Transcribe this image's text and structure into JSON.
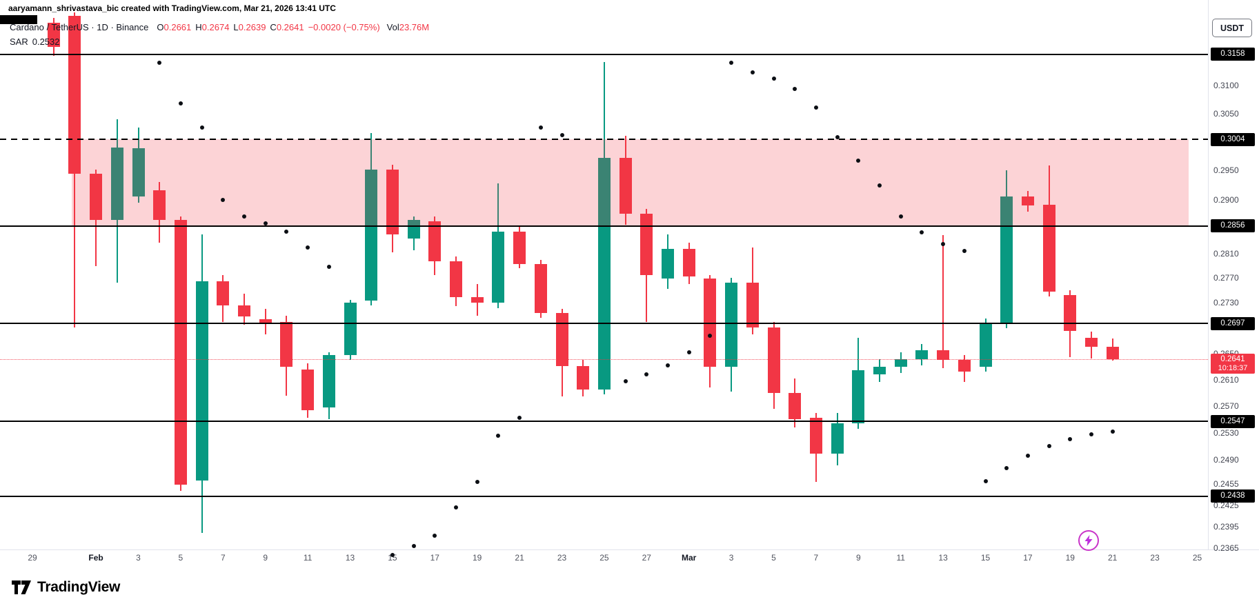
{
  "attribution": "aaryamann_shrivastava_bic created with TradingView.com, Mar 21, 2026 13:41 UTC",
  "legend": {
    "title": "Cardano / TetherUS · 1D · Binance",
    "o_label": "O",
    "o_value": "0.2661",
    "h_label": "H",
    "h_value": "0.2674",
    "l_label": "L",
    "l_value": "0.2639",
    "c_label": "C",
    "c_value": "0.2641",
    "change": "−0.0020 (−0.75%)",
    "vol_label": "Vol",
    "vol_value": "23.76M",
    "indicator_name": "SAR",
    "indicator_value": "0.2532"
  },
  "axis_right": {
    "currency_button": "USDT",
    "labels": [
      {
        "text": "0.3100",
        "price": 0.31
      },
      {
        "text": "0.3050",
        "price": 0.305
      },
      {
        "text": "0.2950",
        "price": 0.295
      },
      {
        "text": "0.2900",
        "price": 0.29
      },
      {
        "text": "0.2810",
        "price": 0.281
      },
      {
        "text": "0.2770",
        "price": 0.277
      },
      {
        "text": "0.2730",
        "price": 0.273
      },
      {
        "text": "0.2650",
        "price": 0.265
      },
      {
        "text": "0.2610",
        "price": 0.261
      },
      {
        "text": "0.2570",
        "price": 0.257
      },
      {
        "text": "0.2530",
        "price": 0.253
      },
      {
        "text": "0.2490",
        "price": 0.249
      },
      {
        "text": "0.2455",
        "price": 0.2455
      },
      {
        "text": "0.2425",
        "price": 0.2425
      },
      {
        "text": "0.2395",
        "price": 0.2395
      },
      {
        "text": "0.2365",
        "price": 0.2365
      }
    ],
    "last_price_badge": {
      "value": "0.2641",
      "countdown": "10:18:37",
      "price": 0.2641
    }
  },
  "axis_bottom": {
    "labels": [
      {
        "text": "29",
        "date": "Jan 29"
      },
      {
        "text": "Feb",
        "date": "Feb 1",
        "month": true
      },
      {
        "text": "3",
        "date": "Feb 3"
      },
      {
        "text": "5",
        "date": "Feb 5"
      },
      {
        "text": "7",
        "date": "Feb 7"
      },
      {
        "text": "9",
        "date": "Feb 9"
      },
      {
        "text": "11",
        "date": "Feb 11"
      },
      {
        "text": "13",
        "date": "Feb 13"
      },
      {
        "text": "15",
        "date": "Feb 15"
      },
      {
        "text": "17",
        "date": "Feb 17"
      },
      {
        "text": "19",
        "date": "Feb 19"
      },
      {
        "text": "21",
        "date": "Feb 21"
      },
      {
        "text": "23",
        "date": "Feb 23"
      },
      {
        "text": "25",
        "date": "Feb 25"
      },
      {
        "text": "27",
        "date": "Feb 27"
      },
      {
        "text": "Mar",
        "date": "Mar 1",
        "month": true
      },
      {
        "text": "3",
        "date": "Mar 3"
      },
      {
        "text": "5",
        "date": "Mar 5"
      },
      {
        "text": "7",
        "date": "Mar 7"
      },
      {
        "text": "9",
        "date": "Mar 9"
      },
      {
        "text": "11",
        "date": "Mar 11"
      },
      {
        "text": "13",
        "date": "Mar 13"
      },
      {
        "text": "15",
        "date": "Mar 15"
      },
      {
        "text": "17",
        "date": "Mar 17"
      },
      {
        "text": "19",
        "date": "Mar 19"
      },
      {
        "text": "21",
        "date": "Mar 21"
      },
      {
        "text": "23",
        "date": "Mar 23"
      },
      {
        "text": "25",
        "date": "Mar 25"
      }
    ]
  },
  "logo": {
    "text": "TradingView"
  },
  "colors": {
    "up": "#089981",
    "down": "#F23645",
    "zone_fill": "rgba(242,54,69,0.22)",
    "level_line": "#000000",
    "sar_dot": "#0C0F14",
    "last_price": "#F23645",
    "badge_bg": "#000000",
    "badge_text": "#FFFFFF",
    "last_badge_bg": "#F23645"
  },
  "chart_data": {
    "type": "candlestick",
    "symbol": "Cardano / TetherUS",
    "exchange": "Binance",
    "timeframe": "1D",
    "scale": "log",
    "last_price": 0.2641,
    "price_range": [
      0.2365,
      0.3236
    ],
    "overlay_indicator": "Parabolic SAR",
    "zone": {
      "top": 0.3004,
      "bottom": 0.2856,
      "from_date": "Jan 31"
    },
    "levels": [
      {
        "price": 0.3158,
        "label": "0.3158",
        "style": "solid"
      },
      {
        "price": 0.3004,
        "label": "0.3004",
        "style": "dashed"
      },
      {
        "price": 0.2856,
        "label": "0.2856",
        "style": "solid"
      },
      {
        "price": 0.2697,
        "label": "0.2697",
        "style": "solid"
      },
      {
        "price": 0.2547,
        "label": "0.2547",
        "style": "solid"
      },
      {
        "price": 0.2438,
        "label": "0.2438",
        "style": "solid"
      }
    ],
    "candles": [
      {
        "date": "Jan 30",
        "o": 0.3217,
        "h": 0.3225,
        "l": 0.3155,
        "c": 0.3171
      },
      {
        "date": "Jan 31",
        "o": 0.3229,
        "h": 0.3236,
        "l": 0.2691,
        "c": 0.2944
      },
      {
        "date": "Feb 1",
        "o": 0.2944,
        "h": 0.2952,
        "l": 0.2789,
        "c": 0.2866
      },
      {
        "date": "Feb 2",
        "o": 0.2866,
        "h": 0.304,
        "l": 0.2763,
        "c": 0.299
      },
      {
        "date": "Feb 3",
        "o": 0.2905,
        "h": 0.3025,
        "l": 0.2895,
        "c": 0.2989
      },
      {
        "date": "Feb 4",
        "o": 0.2916,
        "h": 0.293,
        "l": 0.2828,
        "c": 0.2866
      },
      {
        "date": "Feb 5",
        "o": 0.2866,
        "h": 0.2872,
        "l": 0.2445,
        "c": 0.2454
      },
      {
        "date": "Feb 6",
        "o": 0.246,
        "h": 0.2842,
        "l": 0.2386,
        "c": 0.2765
      },
      {
        "date": "Feb 7",
        "o": 0.2765,
        "h": 0.2775,
        "l": 0.27,
        "c": 0.2726
      },
      {
        "date": "Feb 8",
        "o": 0.2726,
        "h": 0.2745,
        "l": 0.2695,
        "c": 0.2708
      },
      {
        "date": "Feb 9",
        "o": 0.2704,
        "h": 0.272,
        "l": 0.268,
        "c": 0.2697
      },
      {
        "date": "Feb 10",
        "o": 0.27,
        "h": 0.271,
        "l": 0.2586,
        "c": 0.263
      },
      {
        "date": "Feb 11",
        "o": 0.2626,
        "h": 0.2635,
        "l": 0.2552,
        "c": 0.2564
      },
      {
        "date": "Feb 12",
        "o": 0.2568,
        "h": 0.2652,
        "l": 0.255,
        "c": 0.2648
      },
      {
        "date": "Feb 13",
        "o": 0.2648,
        "h": 0.2735,
        "l": 0.264,
        "c": 0.273
      },
      {
        "date": "Feb 14",
        "o": 0.2734,
        "h": 0.3015,
        "l": 0.2726,
        "c": 0.2951
      },
      {
        "date": "Feb 15",
        "o": 0.2951,
        "h": 0.296,
        "l": 0.2812,
        "c": 0.2842
      },
      {
        "date": "Feb 16",
        "o": 0.2835,
        "h": 0.2872,
        "l": 0.2815,
        "c": 0.2866
      },
      {
        "date": "Feb 17",
        "o": 0.2863,
        "h": 0.2872,
        "l": 0.2775,
        "c": 0.2797
      },
      {
        "date": "Feb 18",
        "o": 0.2797,
        "h": 0.2805,
        "l": 0.2725,
        "c": 0.2739
      },
      {
        "date": "Feb 19",
        "o": 0.2739,
        "h": 0.276,
        "l": 0.271,
        "c": 0.273
      },
      {
        "date": "Feb 20",
        "o": 0.273,
        "h": 0.2928,
        "l": 0.2722,
        "c": 0.2846
      },
      {
        "date": "Feb 21",
        "o": 0.2846,
        "h": 0.2855,
        "l": 0.2786,
        "c": 0.2793
      },
      {
        "date": "Feb 22",
        "o": 0.2793,
        "h": 0.28,
        "l": 0.2706,
        "c": 0.2714
      },
      {
        "date": "Feb 23",
        "o": 0.2714,
        "h": 0.272,
        "l": 0.2585,
        "c": 0.2631
      },
      {
        "date": "Feb 24",
        "o": 0.2631,
        "h": 0.264,
        "l": 0.2585,
        "c": 0.2595
      },
      {
        "date": "Feb 25",
        "o": 0.2595,
        "h": 0.3144,
        "l": 0.2588,
        "c": 0.2972
      },
      {
        "date": "Feb 26",
        "o": 0.2972,
        "h": 0.3011,
        "l": 0.2858,
        "c": 0.2876
      },
      {
        "date": "Feb 27",
        "o": 0.2876,
        "h": 0.2885,
        "l": 0.27,
        "c": 0.2775
      },
      {
        "date": "Feb 28",
        "o": 0.2769,
        "h": 0.2842,
        "l": 0.2752,
        "c": 0.2818
      },
      {
        "date": "Mar 1",
        "o": 0.2818,
        "h": 0.2828,
        "l": 0.276,
        "c": 0.2772
      },
      {
        "date": "Mar 2",
        "o": 0.2769,
        "h": 0.2775,
        "l": 0.2598,
        "c": 0.263
      },
      {
        "date": "Mar 3",
        "o": 0.263,
        "h": 0.277,
        "l": 0.2592,
        "c": 0.2763
      },
      {
        "date": "Mar 4",
        "o": 0.2763,
        "h": 0.282,
        "l": 0.268,
        "c": 0.2691
      },
      {
        "date": "Mar 5",
        "o": 0.2691,
        "h": 0.27,
        "l": 0.2566,
        "c": 0.259
      },
      {
        "date": "Mar 6",
        "o": 0.259,
        "h": 0.2612,
        "l": 0.2538,
        "c": 0.255
      },
      {
        "date": "Mar 7",
        "o": 0.2552,
        "h": 0.256,
        "l": 0.2458,
        "c": 0.2499
      },
      {
        "date": "Mar 8",
        "o": 0.2499,
        "h": 0.256,
        "l": 0.2482,
        "c": 0.2544
      },
      {
        "date": "Mar 9",
        "o": 0.2544,
        "h": 0.2675,
        "l": 0.2536,
        "c": 0.2624
      },
      {
        "date": "Mar 10",
        "o": 0.2618,
        "h": 0.2642,
        "l": 0.2606,
        "c": 0.263
      },
      {
        "date": "Mar 11",
        "o": 0.263,
        "h": 0.2652,
        "l": 0.262,
        "c": 0.2642
      },
      {
        "date": "Mar 12",
        "o": 0.2642,
        "h": 0.2665,
        "l": 0.2632,
        "c": 0.2655
      },
      {
        "date": "Mar 13",
        "o": 0.2655,
        "h": 0.284,
        "l": 0.2628,
        "c": 0.264
      },
      {
        "date": "Mar 14",
        "o": 0.264,
        "h": 0.2648,
        "l": 0.2606,
        "c": 0.2622
      },
      {
        "date": "Mar 15",
        "o": 0.263,
        "h": 0.2705,
        "l": 0.2622,
        "c": 0.2697
      },
      {
        "date": "Mar 16",
        "o": 0.2697,
        "h": 0.295,
        "l": 0.269,
        "c": 0.2906
      },
      {
        "date": "Mar 17",
        "o": 0.2906,
        "h": 0.2915,
        "l": 0.288,
        "c": 0.289
      },
      {
        "date": "Mar 18",
        "o": 0.2892,
        "h": 0.2959,
        "l": 0.274,
        "c": 0.2748
      },
      {
        "date": "Mar 19",
        "o": 0.2742,
        "h": 0.275,
        "l": 0.2645,
        "c": 0.2685
      },
      {
        "date": "Mar 20",
        "o": 0.2675,
        "h": 0.2685,
        "l": 0.2642,
        "c": 0.2661
      },
      {
        "date": "Mar 21",
        "o": 0.2661,
        "h": 0.2674,
        "l": 0.2639,
        "c": 0.2641
      }
    ],
    "sar": [
      {
        "date": "Feb 4",
        "value": 0.3142
      },
      {
        "date": "Feb 5",
        "value": 0.3068
      },
      {
        "date": "Feb 6",
        "value": 0.3025
      },
      {
        "date": "Feb 7",
        "value": 0.29
      },
      {
        "date": "Feb 8",
        "value": 0.2872
      },
      {
        "date": "Feb 9",
        "value": 0.286
      },
      {
        "date": "Feb 10",
        "value": 0.2846
      },
      {
        "date": "Feb 11",
        "value": 0.282
      },
      {
        "date": "Feb 12",
        "value": 0.2788
      },
      {
        "date": "Feb 15",
        "value": 0.2355
      },
      {
        "date": "Feb 16",
        "value": 0.2368
      },
      {
        "date": "Feb 17",
        "value": 0.2382
      },
      {
        "date": "Feb 18",
        "value": 0.2422
      },
      {
        "date": "Feb 19",
        "value": 0.2458
      },
      {
        "date": "Feb 20",
        "value": 0.2526
      },
      {
        "date": "Feb 21",
        "value": 0.2552
      },
      {
        "date": "Feb 22",
        "value": 0.3025
      },
      {
        "date": "Feb 23",
        "value": 0.3012
      },
      {
        "date": "Feb 26",
        "value": 0.2608
      },
      {
        "date": "Feb 27",
        "value": 0.2618
      },
      {
        "date": "Feb 28",
        "value": 0.2632
      },
      {
        "date": "Mar 1",
        "value": 0.2652
      },
      {
        "date": "Mar 2",
        "value": 0.2678
      },
      {
        "date": "Mar 3",
        "value": 0.3142
      },
      {
        "date": "Mar 4",
        "value": 0.3124
      },
      {
        "date": "Mar 5",
        "value": 0.3113
      },
      {
        "date": "Mar 6",
        "value": 0.3094
      },
      {
        "date": "Mar 7",
        "value": 0.3061
      },
      {
        "date": "Mar 8",
        "value": 0.3008
      },
      {
        "date": "Mar 9",
        "value": 0.2967
      },
      {
        "date": "Mar 10",
        "value": 0.2924
      },
      {
        "date": "Mar 11",
        "value": 0.2872
      },
      {
        "date": "Mar 12",
        "value": 0.2845
      },
      {
        "date": "Mar 13",
        "value": 0.2826
      },
      {
        "date": "Mar 14",
        "value": 0.2814
      },
      {
        "date": "Mar 15",
        "value": 0.2459
      },
      {
        "date": "Mar 16",
        "value": 0.2478
      },
      {
        "date": "Mar 17",
        "value": 0.2496
      },
      {
        "date": "Mar 18",
        "value": 0.2511
      },
      {
        "date": "Mar 19",
        "value": 0.2521
      },
      {
        "date": "Mar 20",
        "value": 0.2528
      },
      {
        "date": "Mar 21",
        "value": 0.2532
      }
    ]
  }
}
